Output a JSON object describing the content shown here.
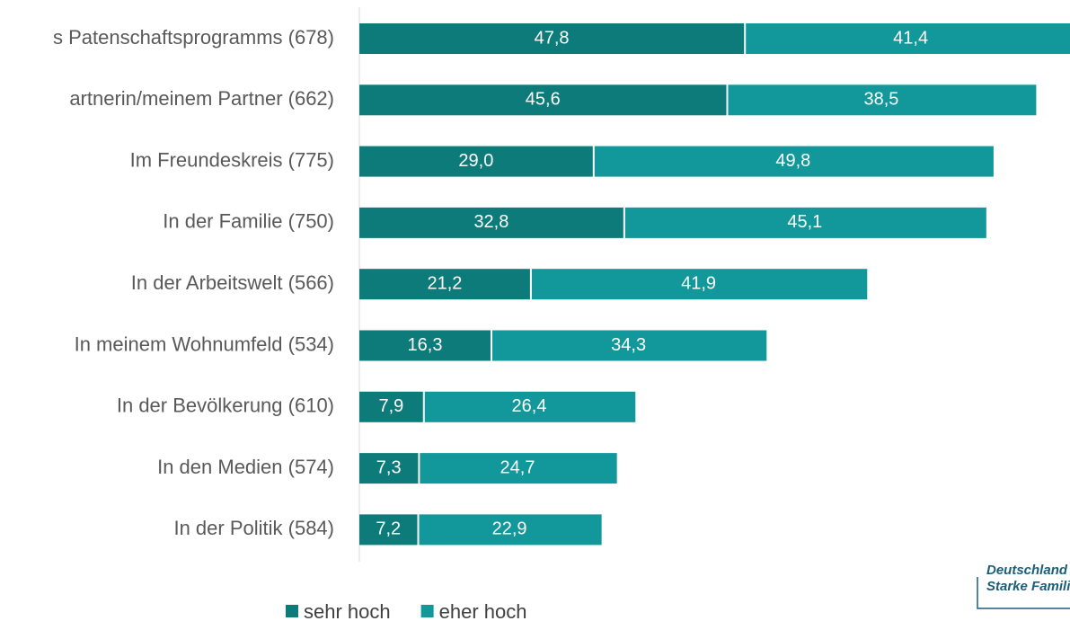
{
  "chart_data": {
    "type": "stacked_barh",
    "categories": [
      "s Patenschaftsprogramms (678)",
      "artnerin/meinem Partner (662)",
      "Im Freundeskreis (775)",
      "In der Familie (750)",
      "In der Arbeitswelt (566)",
      "In meinem Wohnumfeld (534)",
      "In der Bevölkerung (610)",
      "In den Medien (574)",
      "In der Politik (584)"
    ],
    "series": [
      {
        "name": "sehr hoch",
        "color": "#0e7b7b",
        "values": [
          47.8,
          45.6,
          29.0,
          32.8,
          21.2,
          16.3,
          7.9,
          7.3,
          7.2
        ],
        "value_labels": [
          "47,8",
          "45,6",
          "29,0",
          "32,8",
          "21,2",
          "16,3",
          "7,9",
          "7,3",
          "7,2"
        ]
      },
      {
        "name": "eher hoch",
        "color": "#12989a",
        "values": [
          41.4,
          38.5,
          49.8,
          45.1,
          41.9,
          34.3,
          26.4,
          24.7,
          22.9
        ],
        "value_labels": [
          "41,4",
          "38,5",
          "49,8",
          "45,1",
          "41,9",
          "34,3",
          "26,4",
          "24,7",
          "22,9"
        ]
      }
    ],
    "xlim": [
      0,
      88.3
    ],
    "legend": "bottom"
  },
  "logo": [
    "Deutschland",
    "Starke Famili"
  ]
}
